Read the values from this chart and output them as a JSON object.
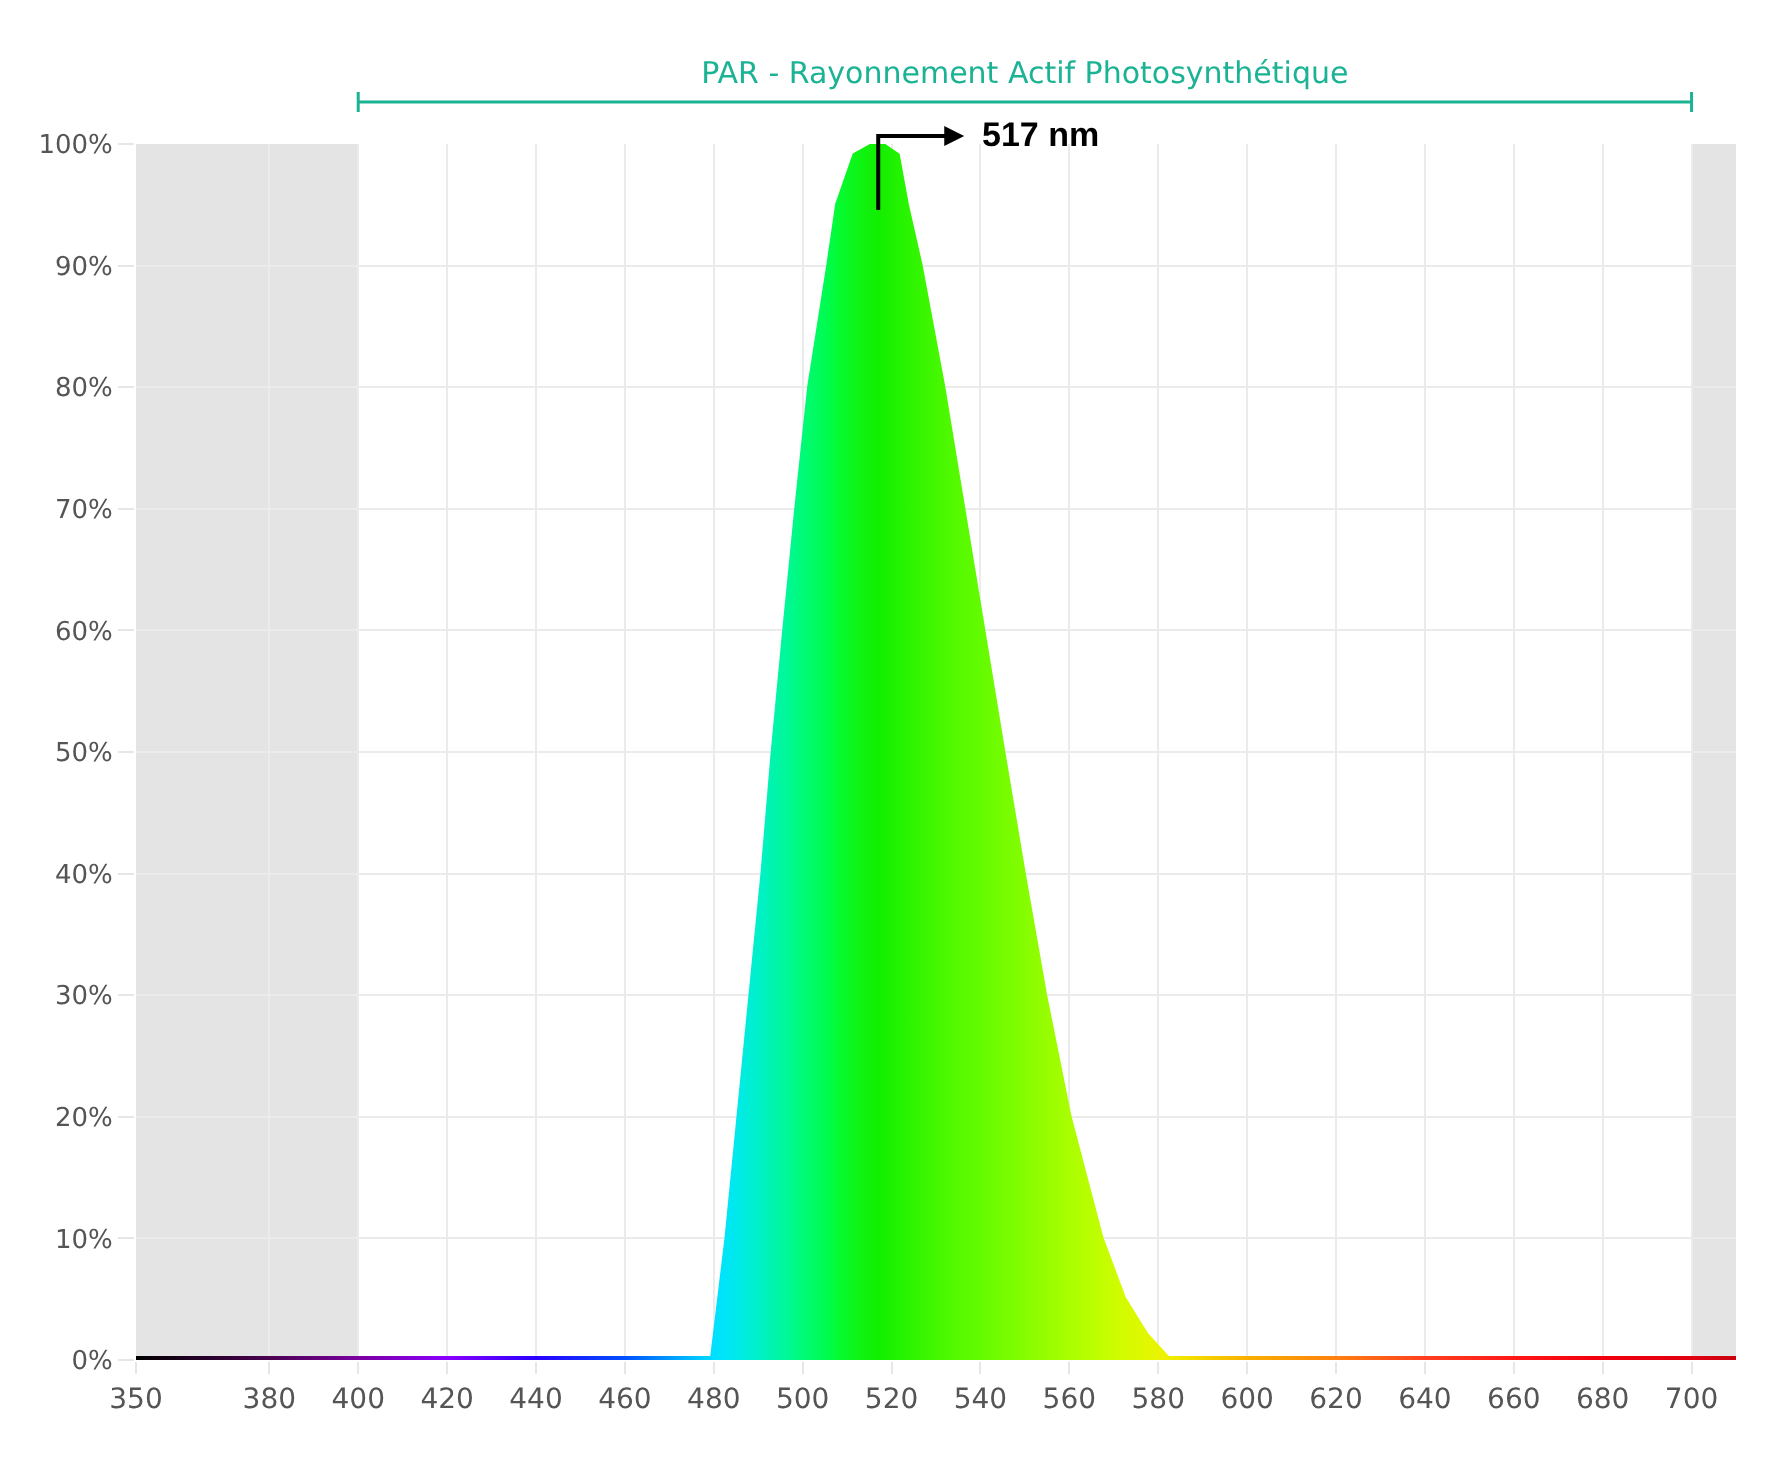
{
  "chart_data": {
    "type": "area",
    "title": "PAR - Rayonnement Actif Photosynthétique",
    "x": [
      350,
      380,
      400,
      420,
      440,
      460,
      480,
      483.3,
      486,
      488.7,
      491.4,
      493.7,
      496.3,
      499,
      501.9,
      506.2,
      508.2,
      512,
      517,
      521,
      523,
      526.1,
      531.2,
      535.7,
      540.2,
      544.7,
      549.3,
      554.1,
      559.6,
      566.8,
      571.9,
      577,
      582,
      600,
      620,
      640,
      660,
      680,
      700,
      710
    ],
    "values": [
      0,
      0,
      0,
      0,
      0,
      0,
      0,
      10,
      20,
      30,
      40,
      50,
      60,
      70,
      80,
      90,
      95,
      99,
      100,
      99,
      95,
      90,
      80,
      70,
      60,
      50,
      40,
      30,
      20,
      10,
      5,
      2,
      0,
      0,
      0,
      0,
      0,
      0,
      0,
      0
    ],
    "colors": [
      "#000000",
      "#4a0050",
      "#7a00a0",
      "#8a00ff",
      "#2a00ff",
      "#0050ff",
      "#00e0ff",
      "#00e6f5",
      "#00ebe5",
      "#00efd0",
      "#00f2c0",
      "#00f5a8",
      "#00f898",
      "#00fa80",
      "#00fb68",
      "#00fc48",
      "#05fb30",
      "#0df518",
      "#12ee00",
      "#20f200",
      "#28f400",
      "#34f600",
      "#48f800",
      "#58fa00",
      "#64fb00",
      "#74fc00",
      "#82fd00",
      "#94fd00",
      "#a8fe00",
      "#c0fe00",
      "#d2fc00",
      "#e0f800",
      "#f0f000",
      "#f8b000",
      "#ff8010",
      "#ff4020",
      "#ff1818",
      "#f00010",
      "#e00010",
      "#c80010"
    ],
    "xlim": [
      350,
      710
    ],
    "ylim": [
      0,
      100
    ],
    "xticks": [
      350,
      380,
      400,
      420,
      440,
      460,
      480,
      500,
      520,
      540,
      560,
      580,
      600,
      620,
      640,
      660,
      680,
      700
    ],
    "yticks": [
      {
        "value": 0,
        "label": "0%"
      },
      {
        "value": 10,
        "label": "10%"
      },
      {
        "value": 20,
        "label": "20%"
      },
      {
        "value": 30,
        "label": "30%"
      },
      {
        "value": 40,
        "label": "40%"
      },
      {
        "value": 50,
        "label": "50%"
      },
      {
        "value": 60,
        "label": "60%"
      },
      {
        "value": 70,
        "label": "70%"
      },
      {
        "value": 80,
        "label": "80%"
      },
      {
        "value": 90,
        "label": "90%"
      },
      {
        "value": 100,
        "label": "100%"
      }
    ],
    "grid": true,
    "bands": [
      {
        "axis": "x",
        "from": 350,
        "to": 400,
        "color": "#e4e4e4"
      },
      {
        "axis": "x",
        "from": 700,
        "to": 710,
        "color": "#e4e4e4"
      }
    ],
    "annotations": [
      "517 nm"
    ]
  }
}
